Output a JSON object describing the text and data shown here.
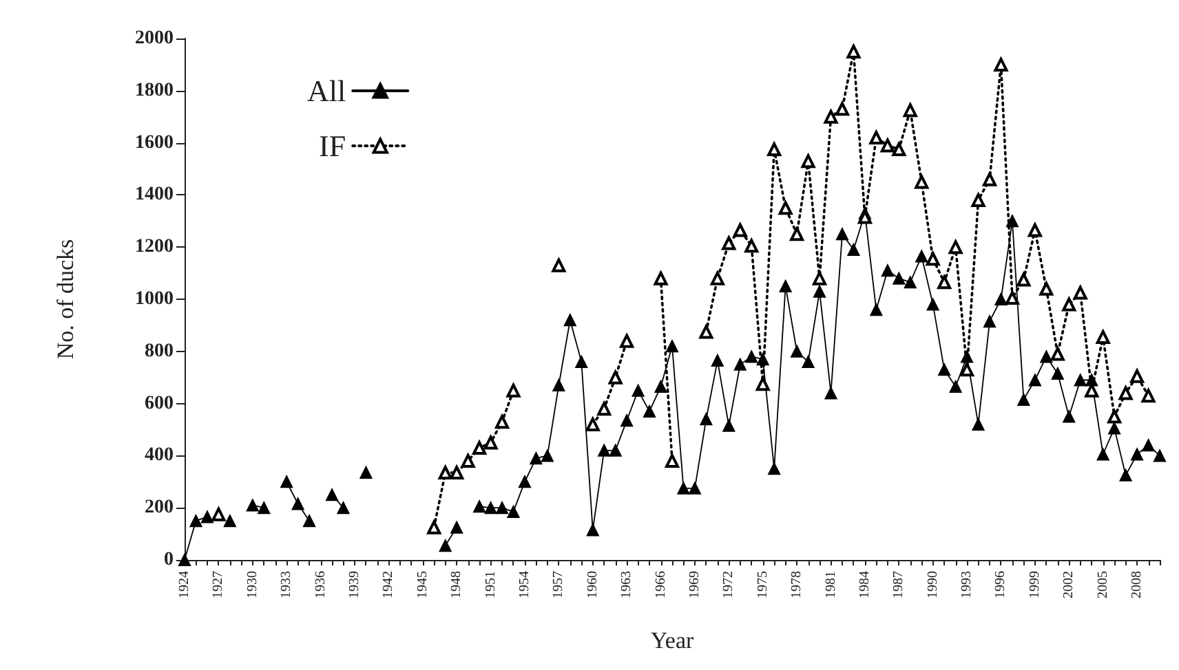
{
  "chart_data": {
    "type": "line",
    "xlabel": "Year",
    "ylabel": "No. of ducks",
    "legend": "top left",
    "marker": "triangle",
    "grid": false,
    "x": [
      1924,
      1925,
      1926,
      1927,
      1928,
      1929,
      1930,
      1931,
      1932,
      1933,
      1934,
      1935,
      1936,
      1937,
      1938,
      1939,
      1940,
      1941,
      1942,
      1943,
      1944,
      1945,
      1946,
      1947,
      1948,
      1949,
      1950,
      1951,
      1952,
      1953,
      1954,
      1955,
      1956,
      1957,
      1958,
      1959,
      1960,
      1961,
      1962,
      1963,
      1964,
      1965,
      1966,
      1967,
      1968,
      1969,
      1970,
      1971,
      1972,
      1973,
      1974,
      1975,
      1976,
      1977,
      1978,
      1979,
      1980,
      1981,
      1982,
      1983,
      1984,
      1985,
      1986,
      1987,
      1988,
      1989,
      1990,
      1991,
      1992,
      1993,
      1994,
      1995,
      1996,
      1997,
      1998,
      1999,
      2000,
      2001,
      2002,
      2003,
      2004,
      2005,
      2006,
      2007,
      2008,
      2009,
      2010
    ],
    "series": [
      {
        "name": "All",
        "color": "#000000",
        "line_style": "solid",
        "values": [
          0,
          150,
          165,
          null,
          150,
          null,
          210,
          200,
          null,
          300,
          215,
          150,
          null,
          250,
          200,
          null,
          335,
          null,
          null,
          null,
          null,
          null,
          null,
          55,
          125,
          null,
          205,
          200,
          200,
          185,
          300,
          390,
          400,
          670,
          920,
          760,
          115,
          420,
          420,
          535,
          650,
          570,
          665,
          820,
          275,
          275,
          540,
          765,
          515,
          750,
          780,
          770,
          350,
          1050,
          800,
          760,
          1030,
          640,
          1250,
          1190,
          1330,
          960,
          1110,
          1080,
          1065,
          1165,
          980,
          730,
          665,
          780,
          520,
          915,
          1000,
          1300,
          615,
          690,
          780,
          715,
          550,
          690,
          690,
          405,
          505,
          325,
          405,
          440,
          400
        ]
      },
      {
        "name": "IF",
        "color": "#000000",
        "line_style": "dotted",
        "values": [
          null,
          null,
          null,
          175,
          null,
          null,
          null,
          null,
          null,
          null,
          null,
          null,
          null,
          null,
          null,
          null,
          null,
          null,
          null,
          null,
          null,
          null,
          125,
          335,
          335,
          380,
          430,
          450,
          530,
          650,
          null,
          null,
          null,
          1130,
          null,
          null,
          520,
          580,
          700,
          840,
          null,
          null,
          1080,
          380,
          null,
          null,
          875,
          1080,
          1215,
          1265,
          1205,
          675,
          1575,
          1350,
          1250,
          1530,
          1080,
          1700,
          1730,
          1950,
          1315,
          1620,
          1590,
          1575,
          1725,
          1450,
          1155,
          1065,
          1200,
          730,
          1380,
          1460,
          1900,
          1005,
          1075,
          1265,
          1040,
          790,
          980,
          1025,
          650,
          855,
          550,
          640,
          705,
          630,
          null
        ]
      }
    ],
    "xlim": [
      1924,
      2010
    ],
    "xticks": [
      1924,
      {
        "value": 1925,
        "label": null
      },
      {
        "value": 1926,
        "label": null
      },
      1927,
      {
        "value": 1928,
        "label": null
      },
      {
        "value": 1929,
        "label": null
      },
      1930,
      {
        "value": 1931,
        "label": null
      },
      {
        "value": 1932,
        "label": null
      },
      1933,
      {
        "value": 1934,
        "label": null
      },
      {
        "value": 1935,
        "label": null
      },
      1936,
      {
        "value": 1937,
        "label": null
      },
      {
        "value": 1938,
        "label": null
      },
      1939,
      {
        "value": 1940,
        "label": null
      },
      {
        "value": 1941,
        "label": null
      },
      1942,
      {
        "value": 1943,
        "label": null
      },
      {
        "value": 1944,
        "label": null
      },
      1945,
      {
        "value": 1946,
        "label": null
      },
      {
        "value": 1947,
        "label": null
      },
      1948,
      {
        "value": 1949,
        "label": null
      },
      {
        "value": 1950,
        "label": null
      },
      1951,
      {
        "value": 1952,
        "label": null
      },
      {
        "value": 1953,
        "label": null
      },
      1954,
      {
        "value": 1955,
        "label": null
      },
      {
        "value": 1956,
        "label": null
      },
      1957,
      {
        "value": 1958,
        "label": null
      },
      {
        "value": 1959,
        "label": null
      },
      1960,
      {
        "value": 1961,
        "label": null
      },
      {
        "value": 1962,
        "label": null
      },
      1963,
      {
        "value": 1964,
        "label": null
      },
      {
        "value": 1965,
        "label": null
      },
      1966,
      {
        "value": 1967,
        "label": null
      },
      {
        "value": 1968,
        "label": null
      },
      1969,
      {
        "value": 1970,
        "label": null
      },
      {
        "value": 1971,
        "label": null
      },
      1972,
      {
        "value": 1973,
        "label": null
      },
      {
        "value": 1974,
        "label": null
      },
      1975,
      {
        "value": 1976,
        "label": null
      },
      {
        "value": 1977,
        "label": null
      },
      1978,
      {
        "value": 1979,
        "label": null
      },
      {
        "value": 1980,
        "label": null
      },
      1981,
      {
        "value": 1982,
        "label": null
      },
      {
        "value": 1983,
        "label": null
      },
      1984,
      {
        "value": 1985,
        "label": null
      },
      {
        "value": 1986,
        "label": null
      },
      1987,
      {
        "value": 1988,
        "label": null
      },
      {
        "value": 1989,
        "label": null
      },
      1990,
      {
        "value": 1991,
        "label": null
      },
      {
        "value": 1992,
        "label": null
      },
      1993,
      {
        "value": 1994,
        "label": null
      },
      {
        "value": 1995,
        "label": null
      },
      1996,
      {
        "value": 1997,
        "label": null
      },
      {
        "value": 1998,
        "label": null
      },
      1999,
      {
        "value": 2000,
        "label": null
      },
      {
        "value": 2001,
        "label": null
      },
      2002,
      {
        "value": 2003,
        "label": null
      },
      {
        "value": 2004,
        "label": null
      },
      2005,
      {
        "value": 2006,
        "label": null
      },
      {
        "value": 2007,
        "label": null
      },
      2008,
      {
        "value": 2009,
        "label": null
      },
      {
        "value": 2010,
        "label": null
      }
    ],
    "ylim": [
      0,
      2000
    ],
    "yticks": [
      0,
      200,
      400,
      600,
      800,
      1000,
      1200,
      1400,
      1600,
      1800,
      2000
    ]
  }
}
